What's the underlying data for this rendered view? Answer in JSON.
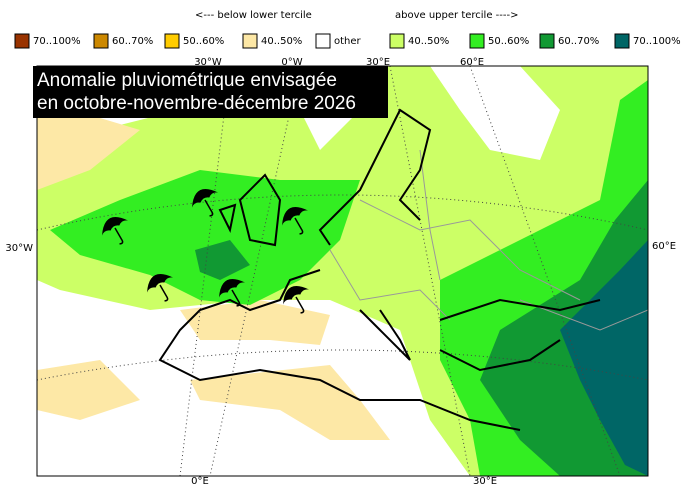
{
  "legend": {
    "below_header": "<--- below lower tercile",
    "above_header": "above upper tercile ---->",
    "items": [
      {
        "label": "70..100%",
        "color": "#993300"
      },
      {
        "label": "60..70%",
        "color": "#cc8800"
      },
      {
        "label": "50..60%",
        "color": "#ffcc00"
      },
      {
        "label": "40..50%",
        "color": "#fde8a6"
      },
      {
        "label": "other",
        "color": "#ffffff"
      },
      {
        "label": "40..50%",
        "color": "#ccff66"
      },
      {
        "label": "50..60%",
        "color": "#33ee22"
      },
      {
        "label": "60..70%",
        "color": "#119933"
      },
      {
        "label": "70..100%",
        "color": "#006666"
      }
    ]
  },
  "title": [
    "Anomalie pluviométrique envisagée",
    "en octobre-novembre-décembre 2026"
  ],
  "graticule_labels": {
    "top": [
      "30°W",
      "0°W",
      "30°E",
      "60°E"
    ],
    "left": "30°W",
    "right": "60°E",
    "bottom": [
      "0°E",
      "30°E"
    ]
  }
}
